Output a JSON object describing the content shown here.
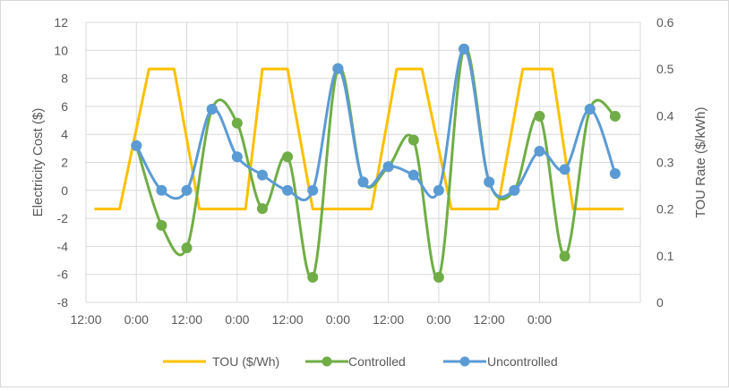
{
  "chart_data": {
    "type": "line",
    "title": "",
    "xlabel": "",
    "ylabel": "Electricity Cost ($)",
    "ylabel_right": "TOU Rate ($/kWh)",
    "x_ticks": [
      "12:00",
      "0:00",
      "12:00",
      "0:00",
      "12:00",
      "0:00",
      "12:00",
      "0:00",
      "12:00",
      "0:00"
    ],
    "x_hours": [
      -12,
      0,
      12,
      24,
      36,
      48,
      60,
      72,
      84,
      96,
      108,
      120
    ],
    "xlim_hours": [
      -12,
      120
    ],
    "ylim": [
      -8,
      12
    ],
    "y_ticks": [
      "-8",
      "-6",
      "-4",
      "-2",
      "0",
      "2",
      "4",
      "6",
      "8",
      "10",
      "12"
    ],
    "ylim_right": [
      0,
      0.6
    ],
    "y_ticks_right": [
      "0",
      "0.1",
      "0.2",
      "0.3",
      "0.4",
      "0.5",
      "0.6"
    ],
    "grid": true,
    "legend_position": "bottom",
    "series": [
      {
        "name": "TOU ($/Wh)",
        "axis": "right",
        "color": "#FFC000",
        "smooth": false,
        "markers": false,
        "x_hours": [
          -10,
          -4,
          3,
          9,
          15,
          20,
          26,
          30,
          36,
          42,
          48,
          56,
          62,
          68,
          75,
          80,
          86,
          92,
          99,
          104,
          110,
          116
        ],
        "values": [
          0.2,
          0.2,
          0.5,
          0.5,
          0.2,
          0.2,
          0.2,
          0.5,
          0.5,
          0.2,
          0.2,
          0.2,
          0.5,
          0.5,
          0.2,
          0.2,
          0.2,
          0.5,
          0.5,
          0.2,
          0.2,
          0.2
        ]
      },
      {
        "name": "Controlled",
        "axis": "left",
        "color": "#70AD47",
        "smooth": true,
        "markers": true,
        "x_hours": [
          0,
          6,
          12,
          18,
          24,
          30,
          36,
          42,
          48,
          54,
          60,
          66,
          72,
          78,
          84,
          90,
          96,
          102,
          108,
          114
        ],
        "values": [
          3.2,
          -2.5,
          -4.1,
          5.8,
          4.8,
          -1.3,
          2.4,
          -6.2,
          8.7,
          0.6,
          1.7,
          3.6,
          -6.2,
          10.1,
          0.6,
          0.0,
          5.3,
          -4.7,
          5.8,
          5.3
        ]
      },
      {
        "name": "Uncontrolled",
        "axis": "left",
        "color": "#5B9BD5",
        "smooth": true,
        "markers": true,
        "x_hours": [
          0,
          6,
          12,
          18,
          24,
          30,
          36,
          42,
          48,
          54,
          60,
          66,
          72,
          78,
          84,
          90,
          96,
          102,
          108,
          114
        ],
        "values": [
          3.2,
          0.0,
          0.0,
          5.8,
          2.4,
          1.1,
          0.0,
          0.0,
          8.7,
          0.6,
          1.7,
          1.1,
          0.0,
          10.1,
          0.6,
          0.0,
          2.8,
          1.5,
          5.8,
          1.2
        ]
      }
    ]
  }
}
